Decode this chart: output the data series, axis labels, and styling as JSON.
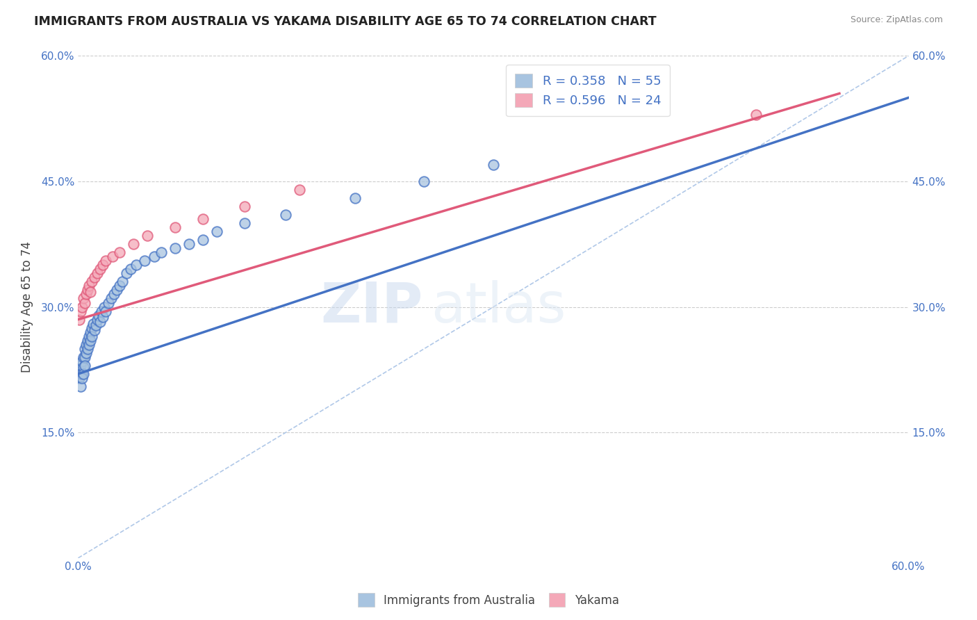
{
  "title": "IMMIGRANTS FROM AUSTRALIA VS YAKAMA DISABILITY AGE 65 TO 74 CORRELATION CHART",
  "source_text": "Source: ZipAtlas.com",
  "ylabel": "Disability Age 65 to 74",
  "xlabel": "",
  "xlim": [
    0.0,
    0.6
  ],
  "ylim": [
    0.0,
    0.6
  ],
  "xtick_labels": [
    "0.0%",
    "60.0%"
  ],
  "ytick_labels": [
    "15.0%",
    "30.0%",
    "45.0%",
    "60.0%"
  ],
  "ytick_values": [
    0.15,
    0.3,
    0.45,
    0.6
  ],
  "grid_color": "#cccccc",
  "background_color": "#ffffff",
  "watermark_zip": "ZIP",
  "watermark_atlas": "atlas",
  "series1_color": "#a8c4e0",
  "series2_color": "#f4a8b8",
  "line1_color": "#4472c4",
  "line2_color": "#e05a7a",
  "diag_color": "#b0c8e8",
  "series1_x": [
    0.001,
    0.001,
    0.002,
    0.002,
    0.002,
    0.003,
    0.003,
    0.003,
    0.004,
    0.004,
    0.004,
    0.005,
    0.005,
    0.005,
    0.006,
    0.006,
    0.007,
    0.007,
    0.008,
    0.008,
    0.009,
    0.009,
    0.01,
    0.01,
    0.011,
    0.012,
    0.013,
    0.014,
    0.015,
    0.016,
    0.017,
    0.018,
    0.019,
    0.02,
    0.022,
    0.024,
    0.026,
    0.028,
    0.03,
    0.032,
    0.035,
    0.038,
    0.042,
    0.048,
    0.055,
    0.06,
    0.07,
    0.08,
    0.09,
    0.1,
    0.12,
    0.15,
    0.2,
    0.25,
    0.3
  ],
  "series1_y": [
    0.225,
    0.215,
    0.23,
    0.22,
    0.205,
    0.235,
    0.22,
    0.215,
    0.24,
    0.228,
    0.22,
    0.25,
    0.24,
    0.23,
    0.255,
    0.245,
    0.26,
    0.25,
    0.265,
    0.255,
    0.27,
    0.26,
    0.275,
    0.265,
    0.28,
    0.272,
    0.278,
    0.285,
    0.29,
    0.282,
    0.295,
    0.288,
    0.3,
    0.295,
    0.305,
    0.31,
    0.315,
    0.32,
    0.325,
    0.33,
    0.34,
    0.345,
    0.35,
    0.355,
    0.36,
    0.365,
    0.37,
    0.375,
    0.38,
    0.39,
    0.4,
    0.41,
    0.43,
    0.45,
    0.47
  ],
  "series2_x": [
    0.001,
    0.002,
    0.003,
    0.004,
    0.005,
    0.006,
    0.007,
    0.008,
    0.009,
    0.01,
    0.012,
    0.014,
    0.016,
    0.018,
    0.02,
    0.025,
    0.03,
    0.04,
    0.05,
    0.07,
    0.09,
    0.12,
    0.16,
    0.49
  ],
  "series2_y": [
    0.285,
    0.295,
    0.3,
    0.31,
    0.305,
    0.315,
    0.32,
    0.325,
    0.318,
    0.33,
    0.335,
    0.34,
    0.345,
    0.35,
    0.355,
    0.36,
    0.365,
    0.375,
    0.385,
    0.395,
    0.405,
    0.42,
    0.44,
    0.53
  ],
  "line1_x0": 0.0,
  "line1_x1": 0.6,
  "line1_y0": 0.22,
  "line1_y1": 0.55,
  "line2_x0": 0.0,
  "line2_x1": 0.55,
  "line2_y0": 0.285,
  "line2_y1": 0.555
}
